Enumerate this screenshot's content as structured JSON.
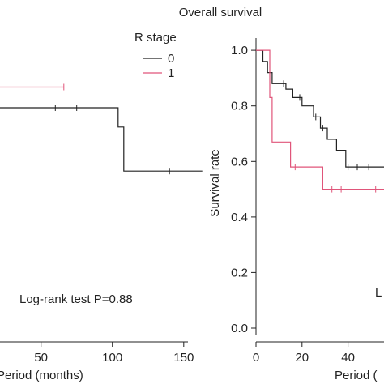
{
  "colors": {
    "stage0": "#222222",
    "stage1": "#e0557a",
    "axis": "#222222"
  },
  "chart_data": [
    {
      "type": "line",
      "title": "",
      "xlabel": "Period (months)",
      "ylabel": "",
      "xlim": [
        -10,
        170
      ],
      "ylim": [
        0,
        1.05
      ],
      "x_ticks": [
        "0",
        "50",
        "100",
        "150"
      ],
      "x_tick_values": [
        0,
        50,
        100,
        150
      ],
      "annotation": "Log-rank test P=0.88",
      "series": [
        {
          "name": "0",
          "color": "#222222",
          "steps": [
            [
              0,
              0.86
            ],
            [
              6,
              0.86
            ],
            [
              6,
              0.84
            ],
            [
              13,
              0.84
            ],
            [
              13,
              0.8
            ],
            [
              104,
              0.8
            ],
            [
              104,
              0.73
            ],
            [
              108,
              0.73
            ],
            [
              108,
              0.57
            ],
            [
              163,
              0.57
            ]
          ],
          "censor": [
            16,
            60,
            75,
            140
          ]
        },
        {
          "name": "1",
          "color": "#e0557a",
          "steps": [
            [
              0,
              0.88
            ],
            [
              6,
              0.88
            ],
            [
              6,
              0.875
            ],
            [
              66,
              0.875
            ]
          ],
          "censor": [
            10,
            66
          ]
        }
      ]
    },
    {
      "type": "line",
      "title": "Overall survival",
      "xlabel": "Period (",
      "ylabel": "Survival rate",
      "xlim": [
        0,
        75
      ],
      "ylim": [
        0,
        1.05
      ],
      "x_ticks": [
        "0",
        "20",
        "40"
      ],
      "x_tick_values": [
        0,
        20,
        40
      ],
      "y_ticks": [
        "0.0",
        "0.2",
        "0.4",
        "0.6",
        "0.8",
        "1.0"
      ],
      "y_tick_values": [
        0,
        0.2,
        0.4,
        0.6,
        0.8,
        1.0
      ],
      "annotation": "L",
      "legend_title": "R stage",
      "series": [
        {
          "name": "0",
          "color": "#222222",
          "steps": [
            [
              0,
              1.0
            ],
            [
              3,
              1.0
            ],
            [
              3,
              0.96
            ],
            [
              5,
              0.96
            ],
            [
              5,
              0.92
            ],
            [
              7,
              0.92
            ],
            [
              7,
              0.88
            ],
            [
              13,
              0.88
            ],
            [
              13,
              0.86
            ],
            [
              16,
              0.86
            ],
            [
              16,
              0.83
            ],
            [
              20,
              0.83
            ],
            [
              20,
              0.8
            ],
            [
              25,
              0.8
            ],
            [
              25,
              0.76
            ],
            [
              28,
              0.76
            ],
            [
              28,
              0.72
            ],
            [
              31,
              0.72
            ],
            [
              31,
              0.68
            ],
            [
              35,
              0.68
            ],
            [
              35,
              0.64
            ],
            [
              39,
              0.64
            ],
            [
              39,
              0.58
            ],
            [
              60,
              0.58
            ]
          ],
          "censor": [
            12,
            19,
            26,
            29,
            40,
            44,
            49
          ]
        },
        {
          "name": "1",
          "color": "#e0557a",
          "steps": [
            [
              0,
              1.0
            ],
            [
              6,
              1.0
            ],
            [
              6,
              0.83
            ],
            [
              7,
              0.83
            ],
            [
              7,
              0.67
            ],
            [
              15,
              0.67
            ],
            [
              15,
              0.58
            ],
            [
              29,
              0.58
            ],
            [
              29,
              0.5
            ],
            [
              60,
              0.5
            ]
          ],
          "censor": [
            17,
            33,
            37,
            52
          ]
        }
      ]
    }
  ]
}
